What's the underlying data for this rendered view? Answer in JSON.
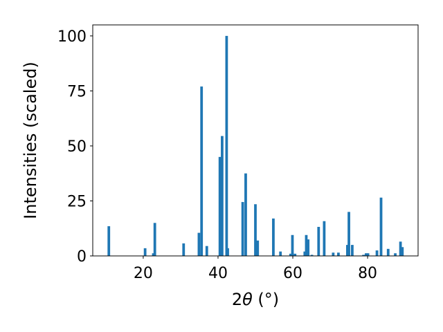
{
  "chart_data": {
    "type": "bar",
    "xlabel_prefix": "2",
    "xlabel_symbol": "θ",
    "xlabel_unit": " (°)",
    "ylabel": "Intensities (scaled)",
    "xlim": [
      6.5,
      93.5
    ],
    "ylim": [
      0,
      105
    ],
    "xticks": [
      20,
      40,
      60,
      80
    ],
    "yticks": [
      0,
      25,
      50,
      75,
      100
    ],
    "bar_width_deg": 0.7,
    "bar_color": "#1f77b4",
    "grid": false,
    "legend": "none",
    "x": [
      10.8,
      20.5,
      22.7,
      23.1,
      30.8,
      34.9,
      35.6,
      37.0,
      40.5,
      41.1,
      42.3,
      42.6,
      46.6,
      47.4,
      50.0,
      50.6,
      54.8,
      56.7,
      59.4,
      59.9,
      60.6,
      63.2,
      63.6,
      64.1,
      65.1,
      66.9,
      68.4,
      70.8,
      72.2,
      74.6,
      75.0,
      75.9,
      78.9,
      79.6,
      80.1,
      82.5,
      83.6,
      85.5,
      87.4,
      88.8,
      89.3
    ],
    "values": [
      13.5,
      3.5,
      1.2,
      15,
      5.7,
      10.5,
      77,
      4.5,
      45,
      54.5,
      100,
      3.5,
      24.5,
      37.5,
      23.5,
      7,
      17,
      2,
      1,
      9.5,
      1,
      2,
      9.5,
      7.5,
      0.5,
      13.2,
      15.8,
      1.5,
      1.5,
      5,
      20,
      5,
      0.5,
      1.2,
      1.2,
      2.5,
      26.5,
      3.2,
      1.2,
      6.5,
      4
    ]
  }
}
